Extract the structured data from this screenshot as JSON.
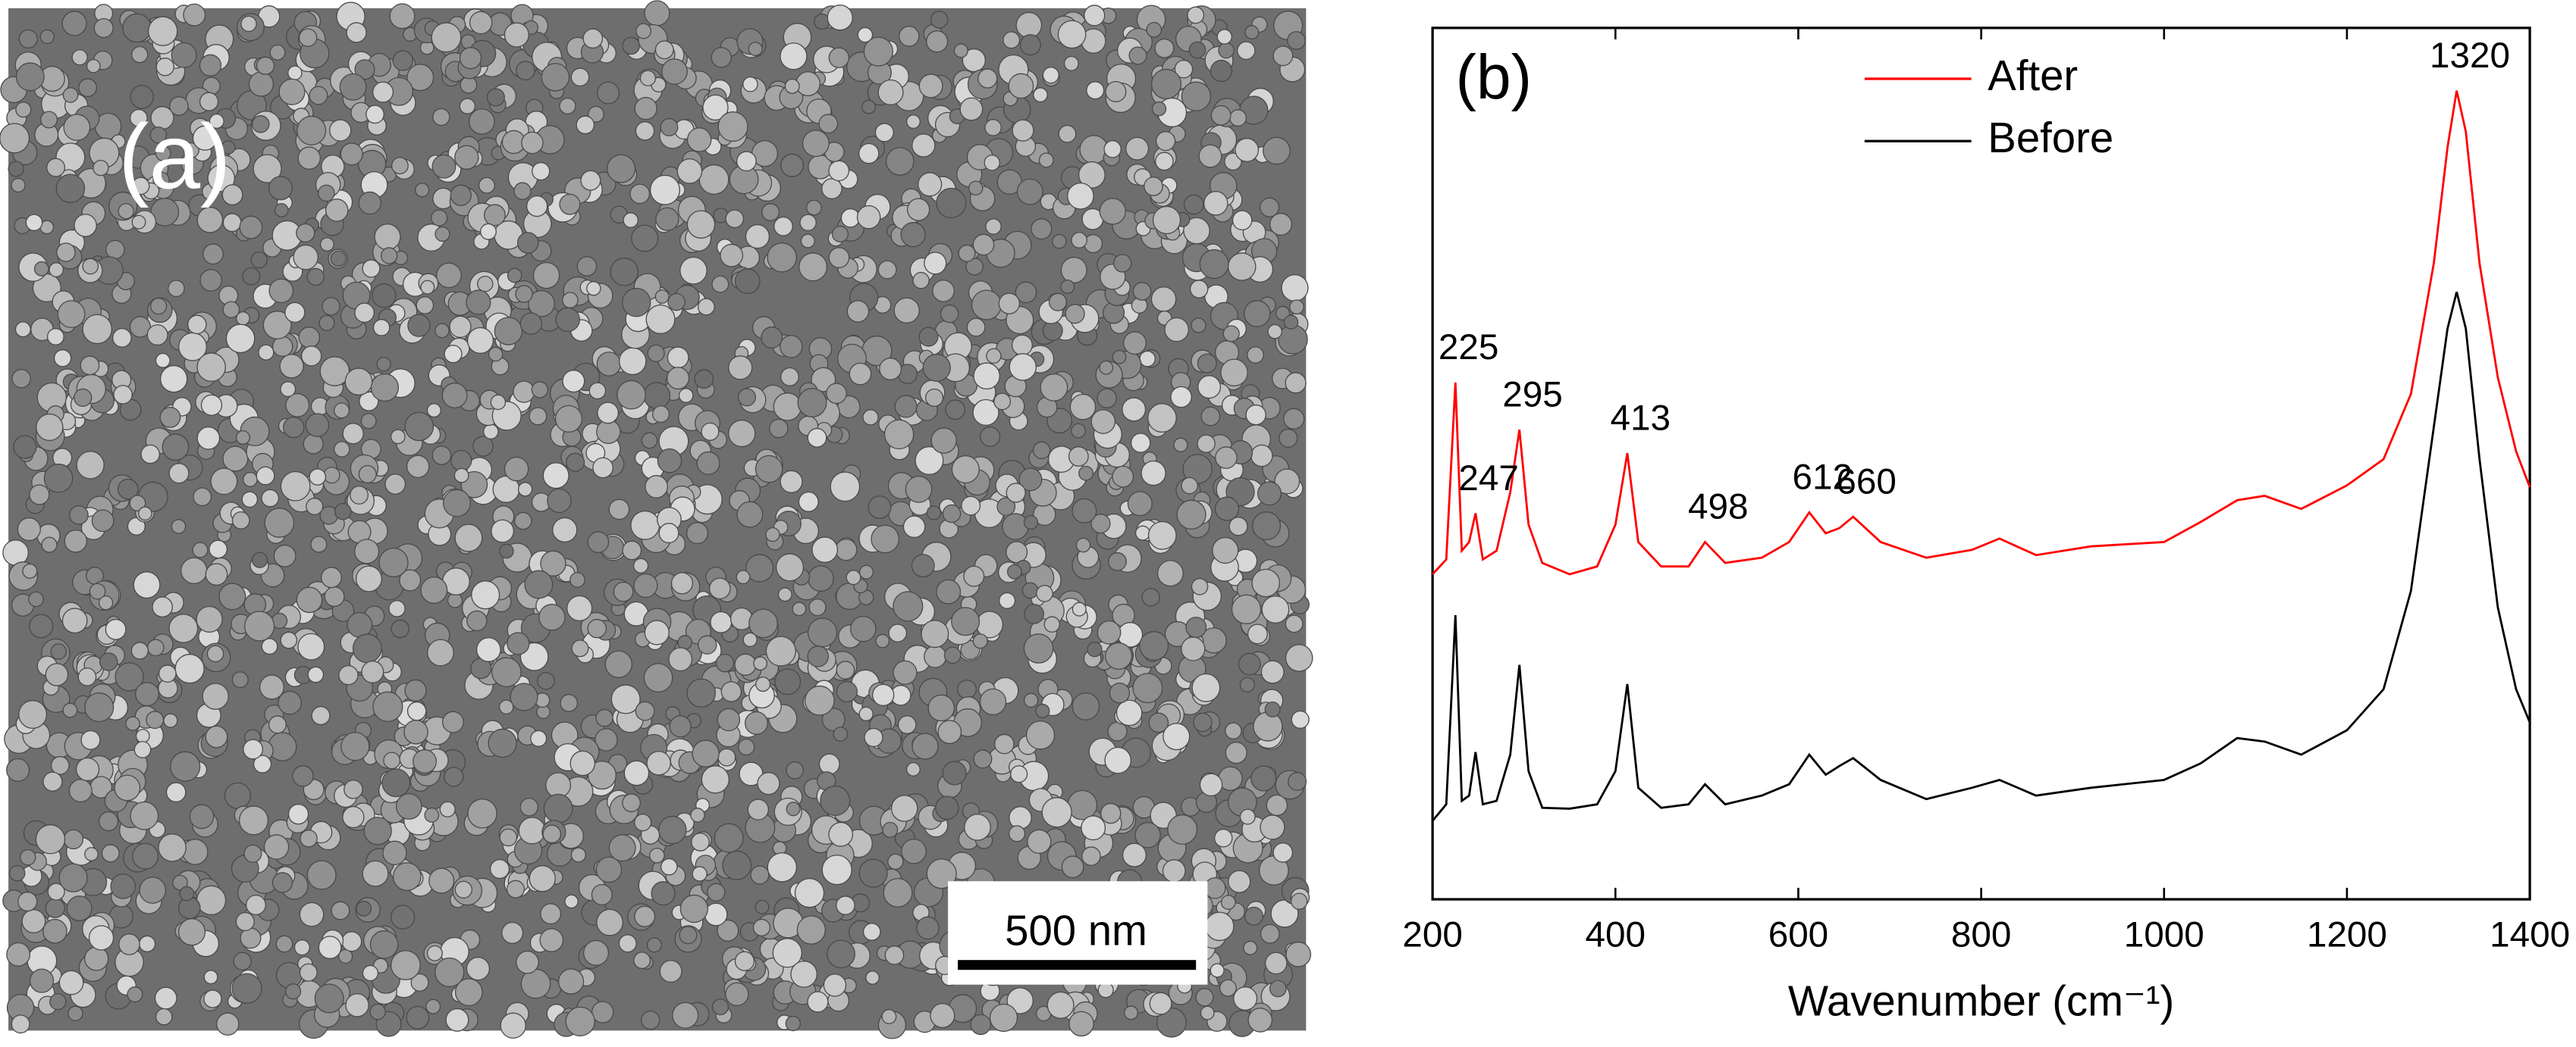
{
  "image_panel": {
    "label": "(a)",
    "scale_bar": "500 nm"
  },
  "chart_data": {
    "type": "line",
    "panel_label": "(b)",
    "x_label": "Wavenumber (cm⁻¹)",
    "x": [
      200,
      215,
      225,
      232,
      240,
      247,
      255,
      270,
      285,
      295,
      305,
      320,
      350,
      380,
      400,
      413,
      425,
      450,
      480,
      498,
      520,
      560,
      590,
      612,
      630,
      645,
      660,
      690,
      740,
      790,
      820,
      860,
      920,
      1000,
      1040,
      1080,
      1110,
      1150,
      1200,
      1240,
      1270,
      1295,
      1310,
      1320,
      1330,
      1345,
      1365,
      1385,
      1400
    ],
    "series": [
      {
        "name": "After",
        "color": "#ff0000",
        "values": [
          37.3,
          39,
          59.3,
          40,
          41,
          44.3,
          39,
          40,
          46.7,
          53.9,
          43,
          38.6,
          37.3,
          38.2,
          43,
          51.2,
          41,
          38.2,
          38.2,
          41,
          38.6,
          39.2,
          41,
          44.4,
          42,
          42.6,
          43.9,
          41,
          39.2,
          40.1,
          41.4,
          39.5,
          40.5,
          41,
          43.3,
          45.8,
          46.3,
          44.8,
          47.5,
          50.5,
          58,
          73,
          86.3,
          92.8,
          88.1,
          73,
          59.9,
          51.4,
          47.3
        ]
      },
      {
        "name": "Before",
        "color": "#000000",
        "values": [
          9,
          10.9,
          32.6,
          11.3,
          11.9,
          16.9,
          10.9,
          11.3,
          16.6,
          26.9,
          14.7,
          10.5,
          10.4,
          10.9,
          14.7,
          24.7,
          12.8,
          10.5,
          10.9,
          13.2,
          10.9,
          11.9,
          13.2,
          16.6,
          14.3,
          15.3,
          16.2,
          13.7,
          11.5,
          12.8,
          13.7,
          11.9,
          12.8,
          13.7,
          15.6,
          18.5,
          18.1,
          16.6,
          19.4,
          24.1,
          35.4,
          54.2,
          65.5,
          69.7,
          65.5,
          50.5,
          33.5,
          24.1,
          20.3
        ]
      }
    ],
    "peak_labels": [
      225,
      247,
      295,
      413,
      498,
      612,
      660,
      1320
    ],
    "xlim": [
      200,
      1400
    ],
    "xticks": [
      200,
      400,
      600,
      800,
      1000,
      1200,
      1400
    ],
    "ylim": [
      0,
      100
    ],
    "legend": "top-center"
  }
}
